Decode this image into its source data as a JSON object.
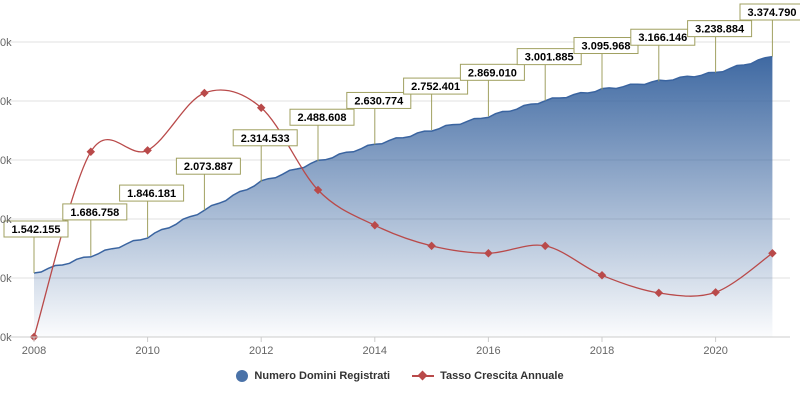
{
  "chart_data": {
    "type": "area",
    "x_ticks": [
      "2008",
      "2010",
      "2012",
      "2014",
      "2016",
      "2018",
      "2020"
    ],
    "y_tick_suffix": "0k",
    "area_series": {
      "name": "Numero Domini Registrati",
      "color": "#4a72a8",
      "x": [
        2008,
        2009,
        2010,
        2011,
        2012,
        2013,
        2014,
        2015,
        2016,
        2017,
        2018,
        2019,
        2020,
        2021
      ],
      "values": [
        1542155,
        1686758,
        1846181,
        2073887,
        2314533,
        2488608,
        2630774,
        2752401,
        2869010,
        3001885,
        3095968,
        3166146,
        3238884,
        3374790
      ],
      "labels": [
        "1.542.155",
        "1.686.758",
        "1.846.181",
        "2.073.887",
        "2.314.533",
        "2.488.608",
        "2.630.774",
        "2.752.401",
        "2.869.010",
        "3.001.885",
        "3.095.968",
        "3.166.146",
        "3.238.884",
        "3.374.790"
      ]
    },
    "line_series": {
      "name": "Tasso Crescita Annuale",
      "color": "#b94a4a",
      "x": [
        2008,
        2009,
        2010,
        2011,
        2012,
        2013,
        2014,
        2015,
        2016,
        2017,
        2018,
        2019,
        2020,
        2021
      ],
      "relative_level": [
        0.0,
        0.63,
        0.635,
        0.83,
        0.78,
        0.5,
        0.38,
        0.31,
        0.285,
        0.31,
        0.21,
        0.15,
        0.152,
        0.285
      ]
    }
  },
  "legend": {
    "area_label": "Numero Domini Registrati",
    "line_label": "Tasso Crescita Annuale"
  }
}
